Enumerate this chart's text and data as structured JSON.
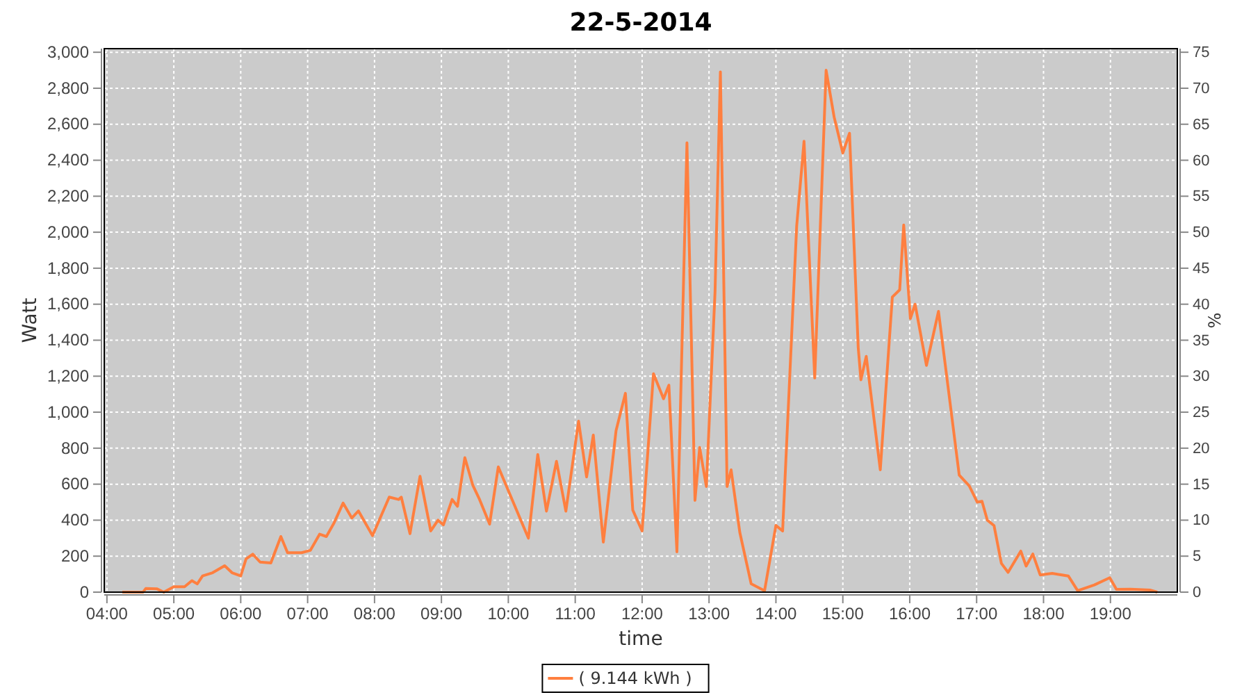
{
  "chart_data": {
    "type": "line",
    "title": "22-5-2014",
    "xlabel": "time",
    "ylabel": "Watt",
    "y2label": "%",
    "xlim": [
      3.96,
      20.0
    ],
    "xticks": [
      {
        "value": 4,
        "label": "04:00"
      },
      {
        "value": 5,
        "label": "05:00"
      },
      {
        "value": 6,
        "label": "06:00"
      },
      {
        "value": 7,
        "label": "07:00"
      },
      {
        "value": 8,
        "label": "08:00"
      },
      {
        "value": 9,
        "label": "09:00"
      },
      {
        "value": 10,
        "label": "10:00"
      },
      {
        "value": 11,
        "label": "11:00"
      },
      {
        "value": 12,
        "label": "12:00"
      },
      {
        "value": 13,
        "label": "13:00"
      },
      {
        "value": 14,
        "label": "14:00"
      },
      {
        "value": 15,
        "label": "15:00"
      },
      {
        "value": 16,
        "label": "16:00"
      },
      {
        "value": 17,
        "label": "17:00"
      },
      {
        "value": 18,
        "label": "18:00"
      },
      {
        "value": 19,
        "label": "19:00"
      }
    ],
    "ylim": [
      0,
      3020
    ],
    "yticks": [
      0,
      200,
      400,
      600,
      800,
      {
        "value": 1000,
        "label": "1,000"
      },
      {
        "value": 1200,
        "label": "1,200"
      },
      {
        "value": 1400,
        "label": "1,400"
      },
      {
        "value": 1600,
        "label": "1,600"
      },
      {
        "value": 1800,
        "label": "1,800"
      },
      {
        "value": 2000,
        "label": "2,000"
      },
      {
        "value": 2200,
        "label": "2,200"
      },
      {
        "value": 2400,
        "label": "2,400"
      },
      {
        "value": 2600,
        "label": "2,600"
      },
      {
        "value": 2800,
        "label": "2,800"
      },
      {
        "value": 3000,
        "label": "3,000"
      }
    ],
    "y2lim": [
      0,
      75.5
    ],
    "y2ticks": [
      0,
      5,
      10,
      15,
      20,
      25,
      30,
      35,
      40,
      45,
      50,
      55,
      60,
      65,
      70,
      75
    ],
    "grid": true,
    "legend": "bottom",
    "marker": "none",
    "line_style": "solid",
    "series": [
      {
        "name": "( 9.144 kWh )",
        "color": "#ff7f3f",
        "x": [
          4.23,
          4.54,
          4.58,
          4.75,
          4.85,
          5.0,
          5.16,
          5.27,
          5.35,
          5.43,
          5.58,
          5.76,
          5.87,
          6.0,
          6.08,
          6.18,
          6.29,
          6.45,
          6.6,
          6.7,
          6.91,
          7.04,
          7.18,
          7.28,
          7.39,
          7.53,
          7.66,
          7.76,
          7.97,
          8.22,
          8.36,
          8.4,
          8.53,
          8.68,
          8.84,
          8.95,
          9.03,
          9.16,
          9.24,
          9.35,
          9.47,
          9.57,
          9.72,
          9.85,
          10.3,
          10.44,
          10.57,
          10.72,
          10.86,
          11.05,
          11.17,
          11.27,
          11.42,
          11.61,
          11.75,
          11.86,
          12.0,
          12.17,
          12.32,
          12.4,
          12.52,
          12.67,
          12.79,
          12.86,
          12.96,
          13.09,
          13.17,
          13.27,
          13.33,
          13.46,
          13.63,
          13.83,
          14.0,
          14.1,
          14.31,
          14.42,
          14.58,
          14.75,
          14.87,
          15.0,
          15.1,
          15.23,
          15.27,
          15.35,
          15.56,
          15.74,
          15.85,
          15.91,
          16.01,
          16.08,
          16.25,
          16.43,
          16.74,
          16.89,
          17.01,
          17.08,
          17.16,
          17.26,
          17.37,
          17.47,
          17.66,
          17.74,
          17.84,
          17.95,
          18.13,
          18.37,
          18.51,
          18.76,
          18.99,
          19.09,
          19.3,
          19.59,
          19.7
        ],
        "values": [
          0,
          0,
          20,
          18,
          0,
          30,
          30,
          64,
          46,
          90,
          108,
          147,
          108,
          90,
          185,
          211,
          167,
          162,
          309,
          219,
          219,
          232,
          322,
          309,
          381,
          495,
          412,
          451,
          314,
          528,
          515,
          528,
          325,
          644,
          340,
          400,
          374,
          515,
          477,
          747,
          593,
          515,
          378,
          696,
          300,
          765,
          450,
          727,
          450,
          950,
          640,
          873,
          278,
          897,
          1105,
          456,
          340,
          1214,
          1075,
          1150,
          224,
          2497,
          510,
          804,
          587,
          1670,
          2891,
          587,
          680,
          332,
          46,
          8,
          371,
          340,
          2033,
          2505,
          1190,
          2900,
          2640,
          2440,
          2550,
          1360,
          1180,
          1310,
          680,
          1640,
          1680,
          2040,
          1520,
          1600,
          1260,
          1560,
          650,
          590,
          500,
          505,
          400,
          370,
          160,
          110,
          228,
          145,
          212,
          96,
          104,
          90,
          8,
          40,
          80,
          15,
          16,
          12,
          0
        ]
      }
    ]
  }
}
